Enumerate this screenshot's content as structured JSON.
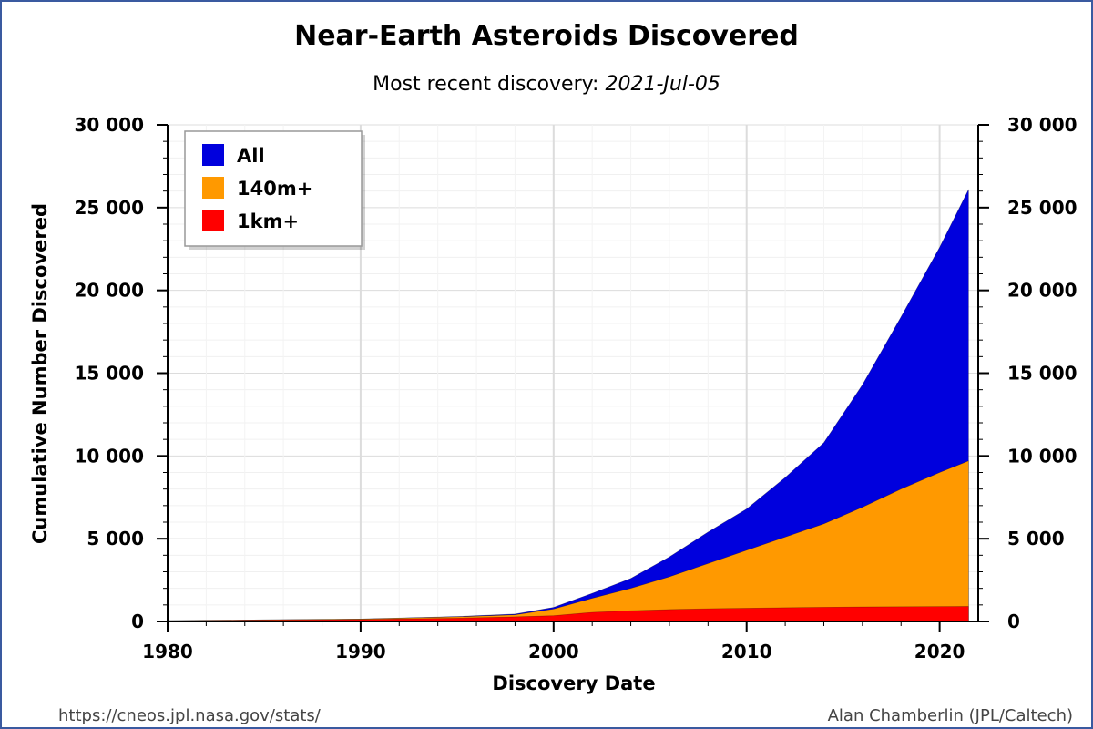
{
  "chart_data": {
    "type": "area",
    "title": "Near-Earth Asteroids Discovered",
    "subtitle_prefix": "Most recent discovery: ",
    "subtitle_date": "2021-Jul-05",
    "xlabel": "Discovery Date",
    "ylabel": "Cumulative Number Discovered",
    "xlim": [
      1980,
      2022
    ],
    "ylim": [
      0,
      30000
    ],
    "x_ticks": [
      1980,
      1990,
      2000,
      2010,
      2020
    ],
    "x_tick_labels": [
      "1980",
      "1990",
      "2000",
      "2010",
      "2020"
    ],
    "y_ticks": [
      0,
      5000,
      10000,
      15000,
      20000,
      25000,
      30000
    ],
    "y_tick_labels": [
      "0",
      "5 000",
      "10 000",
      "15 000",
      "20 000",
      "25 000",
      "30 000"
    ],
    "grid": true,
    "legend_position": "top-left",
    "x": [
      1980,
      1985,
      1990,
      1995,
      1998,
      2000,
      2002,
      2004,
      2006,
      2008,
      2010,
      2012,
      2014,
      2016,
      2018,
      2020,
      2021.5
    ],
    "series": [
      {
        "name": "All",
        "color": "#0000dd",
        "values": [
          50,
          100,
          150,
          300,
          450,
          850,
          1700,
          2600,
          3900,
          5400,
          6800,
          8700,
          10800,
          14300,
          18400,
          22600,
          26100
        ]
      },
      {
        "name": "140m+",
        "color": "#ff9900",
        "values": [
          50,
          100,
          150,
          280,
          400,
          750,
          1400,
          2000,
          2700,
          3500,
          4300,
          5100,
          5900,
          6900,
          8000,
          9000,
          9700
        ]
      },
      {
        "name": "1km+",
        "color": "#ff0000",
        "values": [
          40,
          80,
          120,
          200,
          280,
          350,
          550,
          650,
          720,
          770,
          800,
          830,
          860,
          880,
          890,
          900,
          910
        ]
      }
    ]
  },
  "footer": {
    "source_url": "https://cneos.jpl.nasa.gov/stats/",
    "author": "Alan Chamberlin (JPL/Caltech)"
  }
}
